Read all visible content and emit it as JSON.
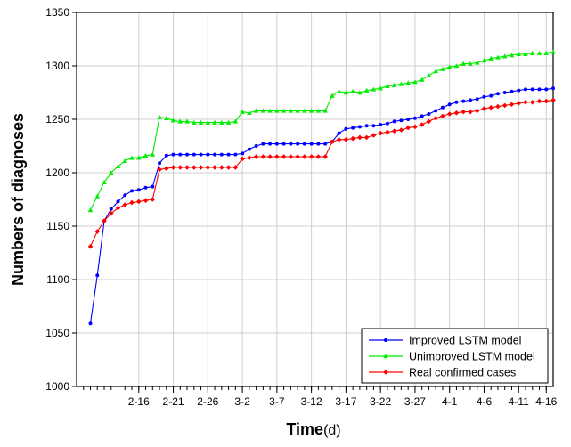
{
  "chart_data": {
    "type": "line",
    "xlabel_bold": "Time",
    "xlabel_rest": "(d)",
    "ylabel": "Numbers of diagnoses",
    "ylim": [
      1000,
      1350
    ],
    "yticks": [
      1000,
      1050,
      1100,
      1150,
      1200,
      1250,
      1300,
      1350
    ],
    "xlim": [
      -2,
      67
    ],
    "x_tick_labels": [
      {
        "x": 7,
        "label": "2-16"
      },
      {
        "x": 12,
        "label": "2-21"
      },
      {
        "x": 17,
        "label": "2-26"
      },
      {
        "x": 22,
        "label": "3-2"
      },
      {
        "x": 27,
        "label": "3-7"
      },
      {
        "x": 32,
        "label": "3-12"
      },
      {
        "x": 37,
        "label": "3-17"
      },
      {
        "x": 42,
        "label": "3-22"
      },
      {
        "x": 47,
        "label": "3-27"
      },
      {
        "x": 52,
        "label": "4-1"
      },
      {
        "x": 57,
        "label": "4-6"
      },
      {
        "x": 62,
        "label": "4-11"
      },
      {
        "x": 66,
        "label": "4-16"
      }
    ],
    "x_minor_ticks": [
      -1,
      0,
      1,
      2,
      3,
      4,
      5,
      6,
      7,
      8,
      9,
      10,
      11,
      12,
      13,
      14,
      15,
      16,
      17,
      18,
      19,
      20,
      21,
      22,
      23,
      24,
      25,
      26,
      27,
      28,
      29,
      30,
      31,
      32,
      33,
      34,
      35,
      36,
      37,
      38,
      39,
      40,
      41,
      42,
      43,
      44,
      45,
      46,
      47,
      48,
      49,
      50,
      51,
      52,
      53,
      54,
      55,
      56,
      57,
      58,
      59,
      60,
      61,
      62,
      63,
      64,
      65,
      66
    ],
    "x_start": 0,
    "legend_position": "bottom-right",
    "grid": true,
    "series": [
      {
        "name": "Improved LSTM model",
        "color": "#0000ff",
        "marker": "circle",
        "values": [
          1059,
          1104,
          1155,
          1166,
          1173,
          1179,
          1183,
          1184,
          1186,
          1187,
          1209,
          1216,
          1217,
          1217,
          1217,
          1217,
          1217,
          1217,
          1217,
          1217,
          1217,
          1217,
          1218,
          1222,
          1225,
          1227,
          1227,
          1227,
          1227,
          1227,
          1227,
          1227,
          1227,
          1227,
          1227,
          1229,
          1237,
          1241,
          1242,
          1243,
          1244,
          1244,
          1245,
          1246,
          1248,
          1249,
          1250,
          1251,
          1253,
          1255,
          1258,
          1261,
          1264,
          1266,
          1267,
          1268,
          1269,
          1271,
          1272,
          1274,
          1275,
          1276,
          1277,
          1278,
          1278,
          1278,
          1278,
          1279
        ]
      },
      {
        "name": "Unimproved LSTM model",
        "color": "#00ee00",
        "marker": "triangle",
        "values": [
          1165,
          1178,
          1191,
          1200,
          1206,
          1211,
          1214,
          1214,
          1216,
          1217,
          1252,
          1251,
          1249,
          1248,
          1248,
          1247,
          1247,
          1247,
          1247,
          1247,
          1247,
          1248,
          1257,
          1256,
          1258,
          1258,
          1258,
          1258,
          1258,
          1258,
          1258,
          1258,
          1258,
          1258,
          1258,
          1272,
          1276,
          1275,
          1276,
          1275,
          1277,
          1278,
          1279,
          1281,
          1282,
          1283,
          1284,
          1285,
          1287,
          1291,
          1295,
          1297,
          1299,
          1300,
          1302,
          1302,
          1303,
          1305,
          1307,
          1308,
          1309,
          1310,
          1311,
          1311,
          1312,
          1312,
          1312,
          1313
        ]
      },
      {
        "name": "Real confirmed cases",
        "color": "#ff0000",
        "marker": "diamond",
        "values": [
          1131,
          1145,
          1155,
          1162,
          1167,
          1170,
          1172,
          1173,
          1174,
          1175,
          1203,
          1204,
          1205,
          1205,
          1205,
          1205,
          1205,
          1205,
          1205,
          1205,
          1205,
          1205,
          1213,
          1214,
          1215,
          1215,
          1215,
          1215,
          1215,
          1215,
          1215,
          1215,
          1215,
          1215,
          1215,
          1229,
          1231,
          1231,
          1232,
          1233,
          1233,
          1235,
          1237,
          1238,
          1239,
          1240,
          1242,
          1243,
          1245,
          1248,
          1251,
          1253,
          1255,
          1256,
          1257,
          1257,
          1258,
          1260,
          1261,
          1262,
          1263,
          1264,
          1265,
          1266,
          1266,
          1267,
          1267,
          1268
        ]
      }
    ]
  }
}
